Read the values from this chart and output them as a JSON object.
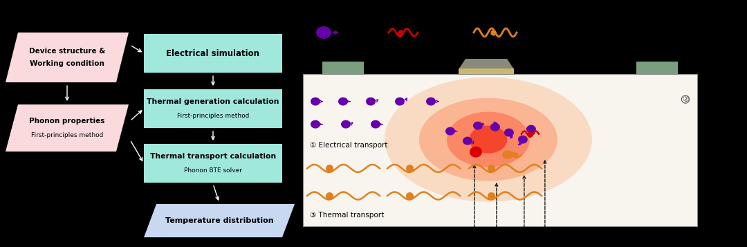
{
  "bg_color": "#000000",
  "salmon_box_color": "#FADADD",
  "teal_box_color": "#A0E8DC",
  "blue_box_color": "#C8D8F0",
  "box1_line1": "Device structure &",
  "box1_line2": "Working condition",
  "box2_line1": "Phonon properties",
  "box2_line2": "First-principles method",
  "box3_title": "Electrical simulation",
  "box4_line1": "Thermal generation calculation",
  "box4_line2": "First-principles method",
  "box5_line1": "Thermal transport calculation",
  "box5_line2": "Phonon BTE solver",
  "box6_title": "Temperature distribution",
  "electron_color": "#6600AA",
  "hot_phonon_color": "#CC0000",
  "phonon_color": "#E08020",
  "device_color": "#7A9E7E",
  "gate_gray": "#8A8A7A",
  "gate_tan": "#C8B870",
  "device_body_color": "#F8F5EE",
  "label1": "① Electrical transport",
  "label3": "③ Thermal transport",
  "label2": "②"
}
